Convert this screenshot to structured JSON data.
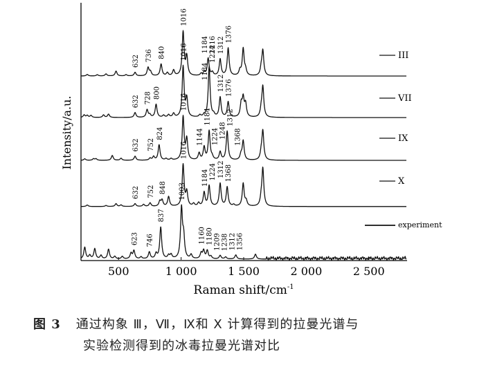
{
  "chart_data": {
    "type": "line",
    "xlabel": "Raman shift/cm-1",
    "ylabel": "Intensity/a.u.",
    "xlim": [
      200,
      2800
    ],
    "ylim": [
      0,
      100
    ],
    "xticks": [
      500,
      1000,
      1500,
      2000,
      2500
    ],
    "xtick_labels": [
      "500",
      "1 000",
      "1 500",
      "2 000",
      "2 500"
    ],
    "grid": false,
    "legend_placement": "right, beside each trace",
    "stacked_offsets": true,
    "series": [
      {
        "name": "III",
        "offset": 71.7,
        "peaks": [
          [
            250,
            0.6
          ],
          [
            330,
            0.5
          ],
          [
            400,
            0.8
          ],
          [
            480,
            1.9
          ],
          [
            560,
            0.5
          ],
          [
            632,
            1.4
          ],
          [
            736,
            3.2
          ],
          [
            755,
            1.6
          ],
          [
            840,
            4.6
          ],
          [
            890,
            1.2
          ],
          [
            940,
            2.2
          ],
          [
            1016,
            17
          ],
          [
            1045,
            7.3
          ],
          [
            1160,
            0.8
          ],
          [
            1184,
            1.2
          ],
          [
            1216,
            6.8
          ],
          [
            1250,
            1.3
          ],
          [
            1312,
            6.5
          ],
          [
            1376,
            10.8
          ],
          [
            1470,
            2
          ],
          [
            1496,
            10.5
          ],
          [
            1515,
            2
          ],
          [
            1640,
            2.5
          ],
          [
            1653,
            9.7
          ]
        ],
        "labels": [
          "632",
          "736",
          "840",
          "1016",
          "1184",
          "1216",
          "1312",
          "1376"
        ]
      },
      {
        "name": "VII",
        "offset": 55.5,
        "peaks": [
          [
            225,
            1
          ],
          [
            250,
            0.8
          ],
          [
            280,
            0.8
          ],
          [
            380,
            1
          ],
          [
            420,
            1.3
          ],
          [
            632,
            1.9
          ],
          [
            728,
            3
          ],
          [
            750,
            1
          ],
          [
            800,
            5.1
          ],
          [
            860,
            0.8
          ],
          [
            900,
            1
          ],
          [
            940,
            1.5
          ],
          [
            1016,
            19.7
          ],
          [
            1045,
            7
          ],
          [
            1150,
            0.8
          ],
          [
            1184,
            0.8
          ],
          [
            1224,
            19.7
          ],
          [
            1260,
            1
          ],
          [
            1312,
            7.8
          ],
          [
            1376,
            6
          ],
          [
            1480,
            5
          ],
          [
            1496,
            7
          ],
          [
            1515,
            5
          ],
          [
            1640,
            2.5
          ],
          [
            1653,
            11.9
          ]
        ],
        "labels": [
          "632",
          "728",
          "800",
          "1016",
          "1184",
          "1224",
          "1312",
          "1376"
        ]
      },
      {
        "name": "IX",
        "offset": 38.8,
        "peaks": [
          [
            230,
            0.6
          ],
          [
            300,
            0.6
          ],
          [
            320,
            0.6
          ],
          [
            450,
            1.9
          ],
          [
            520,
            0.8
          ],
          [
            632,
            1.6
          ],
          [
            752,
            0.8
          ],
          [
            780,
            1.4
          ],
          [
            824,
            6
          ],
          [
            880,
            0.6
          ],
          [
            920,
            0.6
          ],
          [
            1016,
            16.8
          ],
          [
            1045,
            8
          ],
          [
            1144,
            2.7
          ],
          [
            1184,
            5
          ],
          [
            1224,
            11.3
          ],
          [
            1248,
            1.1
          ],
          [
            1312,
            3.2
          ],
          [
            1368,
            11.3
          ],
          [
            1478,
            2
          ],
          [
            1496,
            7.5
          ],
          [
            1640,
            2.5
          ],
          [
            1653,
            11.3
          ]
        ],
        "labels": [
          "632",
          "752",
          "824",
          "1016",
          "1144",
          "1184",
          "1224",
          "1248",
          "1312",
          "1368"
        ]
      },
      {
        "name": "X",
        "offset": 20.8,
        "peaks": [
          [
            250,
            0.6
          ],
          [
            400,
            0.4
          ],
          [
            480,
            1.1
          ],
          [
            520,
            0.6
          ],
          [
            632,
            1.1
          ],
          [
            700,
            0.8
          ],
          [
            752,
            1.4
          ],
          [
            830,
            2
          ],
          [
            848,
            2.4
          ],
          [
            900,
            3.8
          ],
          [
            1016,
            16.2
          ],
          [
            1045,
            5.4
          ],
          [
            1100,
            1
          ],
          [
            1140,
            1.3
          ],
          [
            1184,
            5.4
          ],
          [
            1224,
            8
          ],
          [
            1312,
            8.9
          ],
          [
            1368,
            7.5
          ],
          [
            1420,
            0.6
          ],
          [
            1496,
            8.9
          ],
          [
            1520,
            2
          ],
          [
            1640,
            2.5
          ],
          [
            1653,
            14.6
          ]
        ],
        "labels": [
          "632",
          "752",
          "848",
          "1016",
          "1184",
          "1224",
          "1312",
          "1368"
        ]
      },
      {
        "name": "experiment",
        "offset": 0.3,
        "peaks": [
          [
            230,
            4.6
          ],
          [
            270,
            1.4
          ],
          [
            310,
            4
          ],
          [
            360,
            1.4
          ],
          [
            420,
            3.8
          ],
          [
            470,
            1
          ],
          [
            530,
            1
          ],
          [
            600,
            2.2
          ],
          [
            623,
            3.2
          ],
          [
            680,
            0.8
          ],
          [
            746,
            2.7
          ],
          [
            800,
            2
          ],
          [
            837,
            12.4
          ],
          [
            900,
            1.3
          ],
          [
            920,
            1.6
          ],
          [
            1003,
            19.4
          ],
          [
            1020,
            8
          ],
          [
            1080,
            1.6
          ],
          [
            1160,
            2.2
          ],
          [
            1180,
            3.2
          ],
          [
            1209,
            3.2
          ],
          [
            1238,
            1
          ],
          [
            1312,
            1.4
          ],
          [
            1356,
            0.8
          ],
          [
            1437,
            1.6
          ],
          [
            1594,
            1.9
          ]
        ],
        "labels": [
          "623",
          "746",
          "837",
          "1003",
          "1160",
          "1180",
          "1209",
          "1238",
          "1312",
          "1356"
        ]
      }
    ]
  },
  "caption": {
    "figure_no": "图 3",
    "line1": "通过构象 Ⅲ，Ⅶ，Ⅸ和 Ⅹ 计算得到的拉曼光谱与",
    "line2": "实验检测得到的冰毒拉曼光谱对比"
  }
}
